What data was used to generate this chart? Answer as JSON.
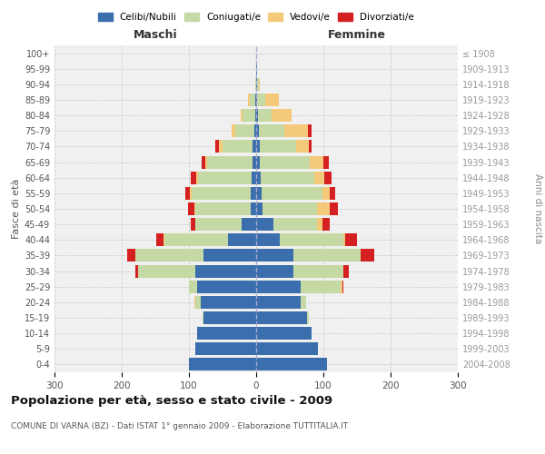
{
  "age_groups": [
    "0-4",
    "5-9",
    "10-14",
    "15-19",
    "20-24",
    "25-29",
    "30-34",
    "35-39",
    "40-44",
    "45-49",
    "50-54",
    "55-59",
    "60-64",
    "65-69",
    "70-74",
    "75-79",
    "80-84",
    "85-89",
    "90-94",
    "95-99",
    "100+"
  ],
  "birth_years": [
    "2004-2008",
    "1999-2003",
    "1994-1998",
    "1989-1993",
    "1984-1988",
    "1979-1983",
    "1974-1978",
    "1969-1973",
    "1964-1968",
    "1959-1963",
    "1954-1958",
    "1949-1953",
    "1944-1948",
    "1939-1943",
    "1934-1938",
    "1929-1933",
    "1924-1928",
    "1919-1923",
    "1914-1918",
    "1909-1913",
    "≤ 1908"
  ],
  "male": {
    "celibi": [
      100,
      90,
      88,
      78,
      82,
      88,
      90,
      78,
      42,
      22,
      8,
      8,
      7,
      5,
      5,
      3,
      2,
      2,
      0,
      0,
      0
    ],
    "coniugati": [
      0,
      0,
      0,
      2,
      8,
      12,
      85,
      102,
      95,
      68,
      82,
      88,
      80,
      68,
      45,
      28,
      18,
      8,
      2,
      0,
      0
    ],
    "vedovi": [
      0,
      0,
      0,
      0,
      2,
      0,
      0,
      0,
      1,
      1,
      2,
      2,
      2,
      3,
      6,
      5,
      3,
      2,
      0,
      0,
      0
    ],
    "divorziati": [
      0,
      0,
      0,
      0,
      0,
      0,
      5,
      12,
      10,
      6,
      10,
      8,
      8,
      5,
      5,
      0,
      0,
      0,
      0,
      0,
      0
    ]
  },
  "female": {
    "nubili": [
      105,
      92,
      82,
      76,
      66,
      66,
      55,
      55,
      35,
      25,
      10,
      8,
      7,
      5,
      5,
      4,
      3,
      2,
      1,
      1,
      0
    ],
    "coniugate": [
      0,
      0,
      0,
      2,
      8,
      60,
      75,
      100,
      95,
      65,
      80,
      90,
      80,
      75,
      55,
      38,
      20,
      12,
      3,
      1,
      0
    ],
    "vedove": [
      0,
      0,
      0,
      0,
      0,
      2,
      0,
      0,
      2,
      8,
      20,
      12,
      15,
      20,
      18,
      35,
      30,
      20,
      2,
      0,
      0
    ],
    "divorziate": [
      0,
      0,
      0,
      0,
      0,
      2,
      8,
      20,
      18,
      12,
      12,
      8,
      10,
      8,
      5,
      5,
      0,
      0,
      0,
      0,
      0
    ]
  },
  "colors": {
    "celibi": "#3a6eac",
    "coniugati": "#c5d9a5",
    "vedovi": "#f5c97a",
    "divorziati": "#d42020"
  },
  "title": "Popolazione per età, sesso e stato civile - 2009",
  "subtitle": "COMUNE DI VARNA (BZ) - Dati ISTAT 1° gennaio 2009 - Elaborazione TUTTITALIA.IT",
  "xlim": 300,
  "xlabel_left": "Maschi",
  "xlabel_right": "Femmine",
  "ylabel_left": "Fasce di età",
  "ylabel_right": "Anni di nascita",
  "legend_labels": [
    "Celibi/Nubili",
    "Coniugati/e",
    "Vedovi/e",
    "Divorziati/e"
  ],
  "background_color": "#ffffff",
  "grid_color": "#cccccc"
}
